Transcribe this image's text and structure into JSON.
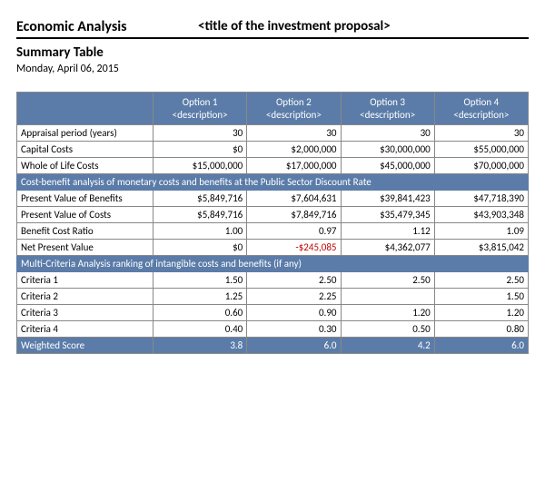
{
  "header": {
    "title": "Economic Analysis",
    "proposal": "<title of the investment proposal>",
    "subtitle": "Summary Table",
    "date": "Monday, April 06, 2015"
  },
  "columns": [
    {
      "top": "Option 1",
      "bot": "<description>"
    },
    {
      "top": "Option 2",
      "bot": "<description>"
    },
    {
      "top": "Option 3",
      "bot": "<description>"
    },
    {
      "top": "Option 4",
      "bot": "<description>"
    }
  ],
  "rows_top": [
    {
      "label": "Appraisal period (years)",
      "v": [
        "30",
        "30",
        "30",
        "30"
      ]
    },
    {
      "label": "Capital Costs",
      "v": [
        "$0",
        "$2,000,000",
        "$30,000,000",
        "$55,000,000"
      ]
    },
    {
      "label": "Whole of Life Costs",
      "v": [
        "$15,000,000",
        "$17,000,000",
        "$45,000,000",
        "$70,000,000"
      ]
    }
  ],
  "section1": "Cost-benefit analysis of monetary costs and benefits at the Public Sector Discount Rate",
  "rows_cba": [
    {
      "label": "Present Value of Benefits",
      "v": [
        "$5,849,716",
        "$7,604,631",
        "$39,841,423",
        "$47,718,390"
      ]
    },
    {
      "label": "Present Value of Costs",
      "v": [
        "$5,849,716",
        "$7,849,716",
        "$35,479,345",
        "$43,903,348"
      ]
    },
    {
      "label": "Benefit Cost Ratio",
      "v": [
        "1.00",
        "0.97",
        "1.12",
        "1.09"
      ]
    },
    {
      "label": "Net Present Value",
      "v": [
        "$0",
        "-$245,085",
        "$4,362,077",
        "$3,815,042"
      ],
      "neg": [
        false,
        true,
        false,
        false
      ]
    }
  ],
  "section2": "Multi-Criteria Analysis ranking of intangible costs and benefits (if any)",
  "rows_mca": [
    {
      "label": "Criteria 1",
      "v": [
        "1.50",
        "2.50",
        "2.50",
        "2.50"
      ]
    },
    {
      "label": "Criteria 2",
      "v": [
        "1.25",
        "2.25",
        "",
        "1.50"
      ]
    },
    {
      "label": "Criteria 3",
      "v": [
        "0.60",
        "0.90",
        "1.20",
        "1.20"
      ]
    },
    {
      "label": "Criteria 4",
      "v": [
        "0.40",
        "0.30",
        "0.50",
        "0.80"
      ]
    }
  ],
  "footer": {
    "label": "Weighted Score",
    "v": [
      "3.8",
      "6.0",
      "4.2",
      "6.0"
    ]
  },
  "style": {
    "header_bg": "#5b7ca8",
    "header_fg": "#ffffff",
    "border": "#888888",
    "neg_color": "#c00000",
    "font_family": "Calibri, Arial, sans-serif",
    "title_fontsize_pt": 16,
    "body_fontsize_pt": 11
  }
}
